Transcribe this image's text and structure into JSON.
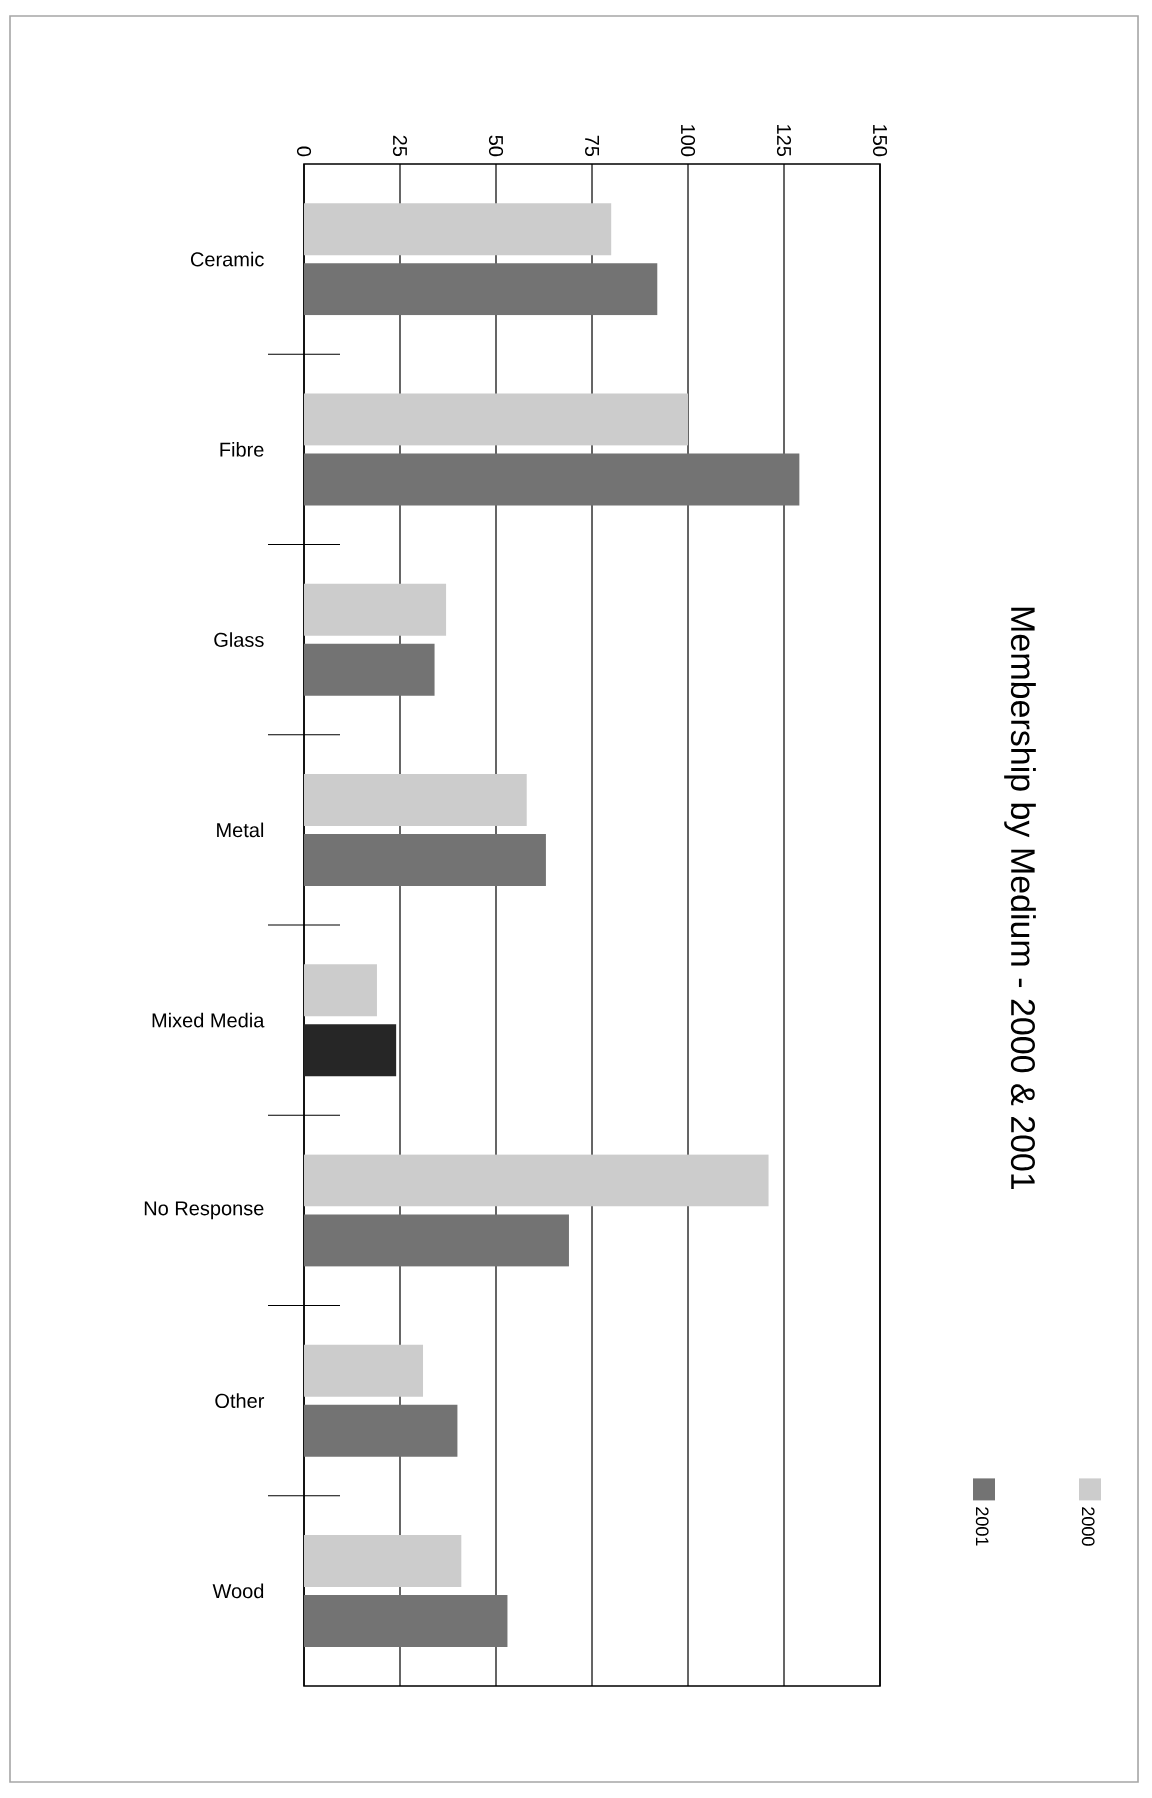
{
  "chart_data": {
    "type": "bar",
    "orientation": "horizontal",
    "title": "Membership by Medium - 2000 & 2001",
    "categories": [
      "Ceramic",
      "Fibre",
      "Glass",
      "Metal",
      "Mixed Media",
      "No Response",
      "Other",
      "Wood"
    ],
    "series": [
      {
        "name": "2000",
        "color": "#cccccc",
        "values": [
          80,
          100,
          37,
          58,
          19,
          121,
          31,
          41
        ]
      },
      {
        "name": "2001",
        "color": "#737373",
        "colors": [
          "#737373",
          "#737373",
          "#737373",
          "#737373",
          "#262626",
          "#737373",
          "#737373",
          "#737373"
        ],
        "values": [
          92,
          129,
          34,
          63,
          24,
          69,
          40,
          53
        ]
      }
    ],
    "xlim": [
      0,
      150
    ],
    "xticks": [
      0,
      25,
      50,
      75,
      100,
      125,
      150
    ],
    "grid": "x",
    "legend": "right"
  }
}
